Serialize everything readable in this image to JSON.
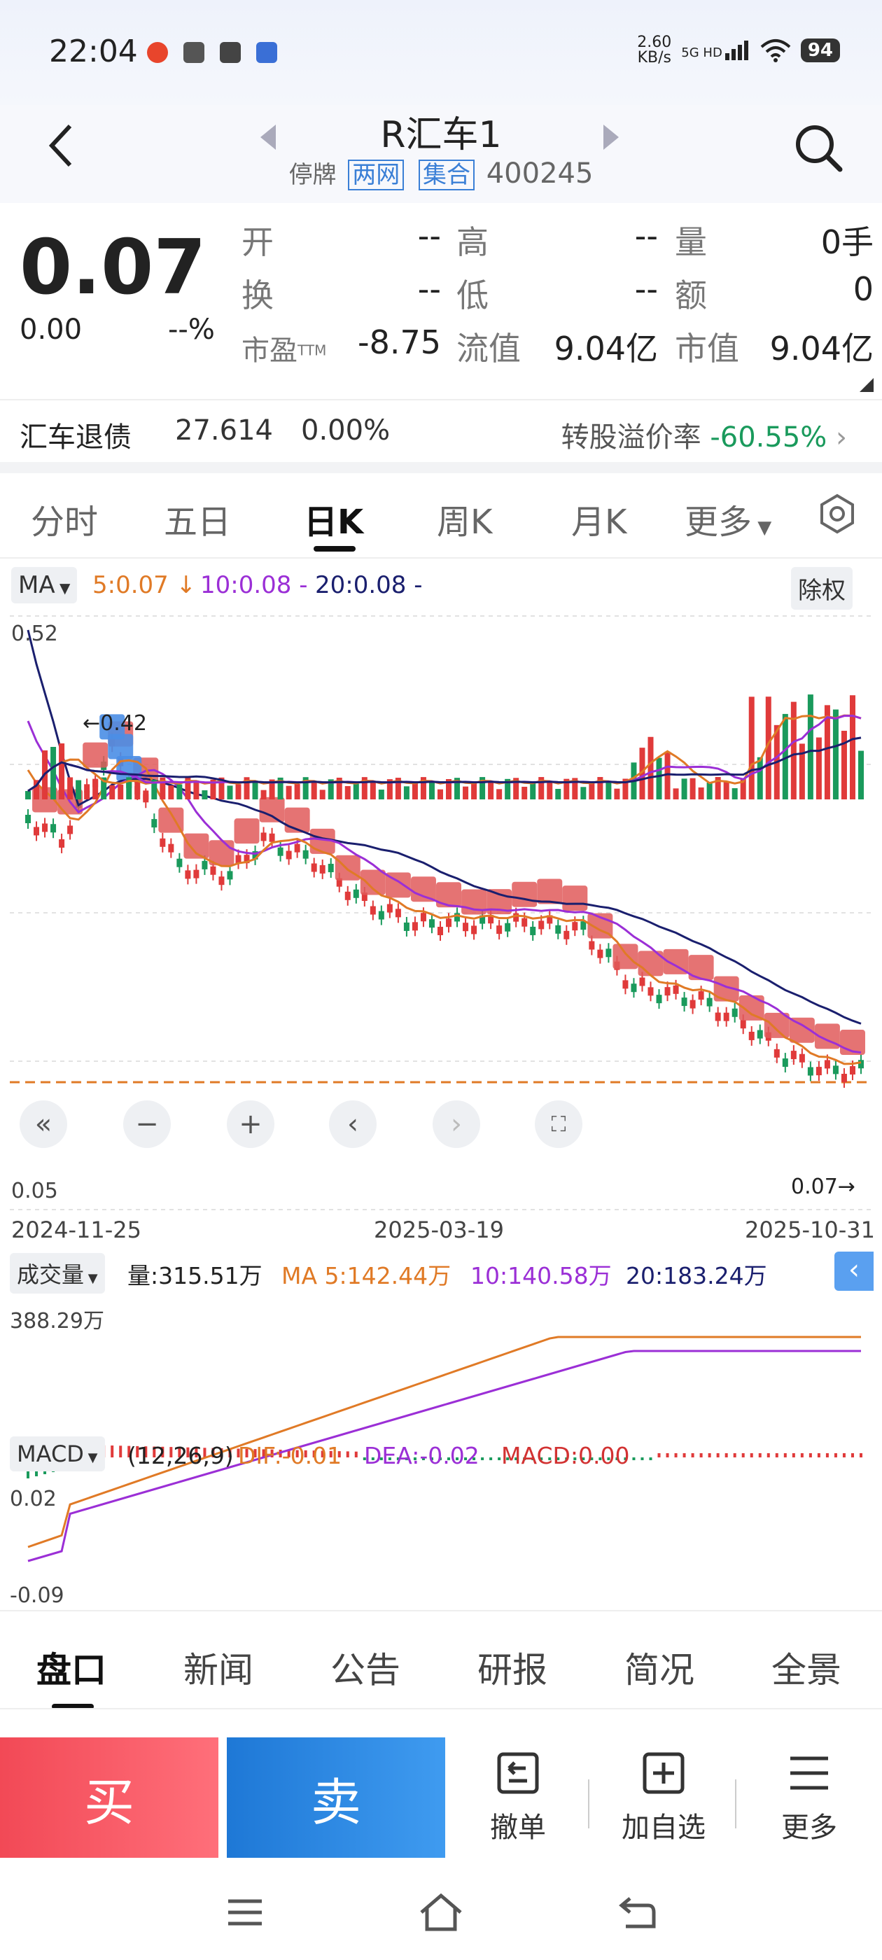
{
  "status_bar": {
    "time": "22:04",
    "net_speed_value": "2.60",
    "net_speed_unit": "KB/s",
    "network": "5G HD",
    "battery": "94"
  },
  "header": {
    "title": "R汇车1",
    "status": "停牌",
    "tag1": "两网",
    "tag2": "集合",
    "code": "400245"
  },
  "quote": {
    "price": "0.07",
    "change": "0.00",
    "change_pct": "--%",
    "rows": [
      [
        {
          "label": "开",
          "value": "--"
        },
        {
          "label": "高",
          "value": "--"
        },
        {
          "label": "量",
          "value": "0手"
        }
      ],
      [
        {
          "label": "换",
          "value": "--"
        },
        {
          "label": "低",
          "value": "--"
        },
        {
          "label": "额",
          "value": "0"
        }
      ],
      [
        {
          "label": "市盈",
          "sup": "TTM",
          "value": "-8.75"
        },
        {
          "label": "流值",
          "value": "9.04亿"
        },
        {
          "label": "市值",
          "value": "9.04亿"
        }
      ]
    ]
  },
  "bond": {
    "name": "汇车退债",
    "price": "27.614",
    "pct": "0.00%",
    "premium_label": "转股溢价率",
    "premium_value": "-60.55%"
  },
  "chart_tabs": [
    "分时",
    "五日",
    "日K",
    "周K",
    "月K",
    "更多"
  ],
  "ma_bar": {
    "label": "MA",
    "ma5": "5:0.07 ↓",
    "ma10": "10:0.08 -",
    "ma20": "20:0.08 -",
    "adjust": "除权"
  },
  "kchart": {
    "high_label": "0.52",
    "low_label": "0.05",
    "max_marker": "0.42",
    "last_marker": "0.07",
    "dates": [
      "2024-11-25",
      "2025-03-19",
      "2025-10-31"
    ]
  },
  "volume": {
    "selector": "成交量",
    "vol": "量:315.51万",
    "ma5": "MA 5:142.44万",
    "ma10": "10:140.58万",
    "ma20": "20:183.24万",
    "axis_max": "388.29万"
  },
  "macd": {
    "selector": "MACD",
    "params": "(12,26,9)",
    "dif": "DIF:-0.01",
    "dea": "DEA:-0.02",
    "macd": "MACD:0.00",
    "axis_top": "0.02",
    "axis_bottom": "-0.09"
  },
  "bottom_tabs": [
    "盘口",
    "新闻",
    "公告",
    "研报",
    "简况",
    "全景"
  ],
  "actions": {
    "buy": "买",
    "sell": "卖",
    "cancel": "撤单",
    "watchlist": "加自选",
    "more": "更多"
  },
  "colors": {
    "up": "#e03a3a",
    "down": "#1a9a5c",
    "ma5": "#e07a26",
    "ma10": "#9b2fd6",
    "ma20": "#1a1f6e",
    "buy": "#f24956",
    "sell": "#1e78d6"
  }
}
